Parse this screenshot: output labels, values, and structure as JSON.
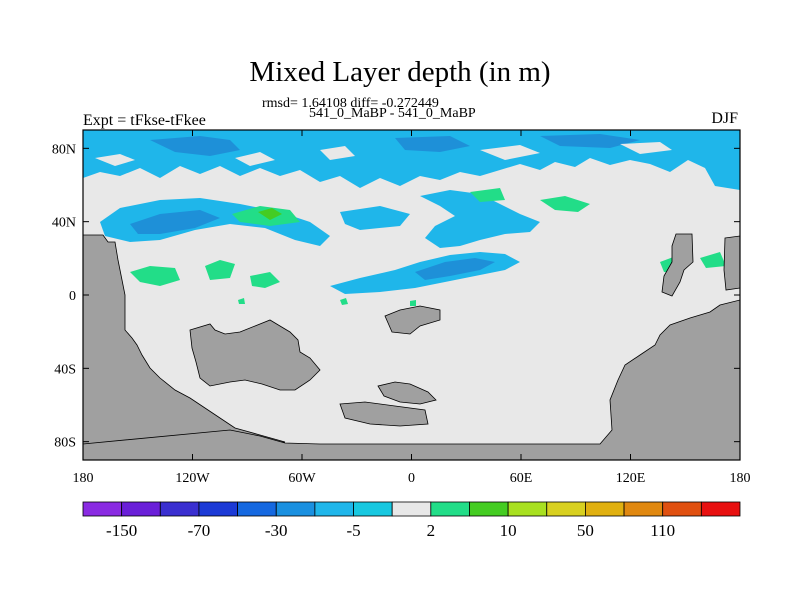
{
  "map": {
    "title": "Mixed Layer depth (in m)",
    "stats_line": "rmsd= 1.64108 diff= -0.272449",
    "subtitle": "541_0_MaBP - 541_0_MaBP",
    "left_label": "Expt = tFkse-tFkee",
    "right_label": "DJF",
    "lon_range": [
      -180,
      180
    ],
    "lat_range": [
      -90,
      90
    ],
    "x_ticks": [
      {
        "value": -180,
        "label": "180"
      },
      {
        "value": -120,
        "label": "120W"
      },
      {
        "value": -60,
        "label": "60W"
      },
      {
        "value": 0,
        "label": "0"
      },
      {
        "value": 60,
        "label": "60E"
      },
      {
        "value": 120,
        "label": "120E"
      },
      {
        "value": 180,
        "label": "180"
      }
    ],
    "y_ticks": [
      {
        "value": 80,
        "label": "80N"
      },
      {
        "value": 40,
        "label": "40N"
      },
      {
        "value": 0,
        "label": "0"
      },
      {
        "value": -40,
        "label": "40S"
      },
      {
        "value": -80,
        "label": "80S"
      }
    ],
    "colors": {
      "background_field": "#e8e8e8",
      "land": "#a0a0a0",
      "light_blue": "#1fb6ea",
      "mid_blue": "#1e90d8",
      "green": "#22dd88",
      "bright_green": "#44cc22"
    }
  },
  "colorbar": {
    "colors": [
      "#8a2be2",
      "#6a1fd8",
      "#3a2fd0",
      "#1c3ad6",
      "#1568e0",
      "#1a90e0",
      "#1fb6ea",
      "#18c8e0",
      "#e8e8e8",
      "#22dd88",
      "#44cc22",
      "#a8e020",
      "#d8d020",
      "#e0b010",
      "#e08810",
      "#e05010",
      "#e81010"
    ],
    "labels": [
      {
        "boundary_index": 1,
        "text": "-150"
      },
      {
        "boundary_index": 3,
        "text": "-70"
      },
      {
        "boundary_index": 5,
        "text": "-30"
      },
      {
        "boundary_index": 7,
        "text": "-5"
      },
      {
        "boundary_index": 9,
        "text": "2"
      },
      {
        "boundary_index": 11,
        "text": "10"
      },
      {
        "boundary_index": 13,
        "text": "50"
      },
      {
        "boundary_index": 15,
        "text": "110"
      }
    ]
  }
}
